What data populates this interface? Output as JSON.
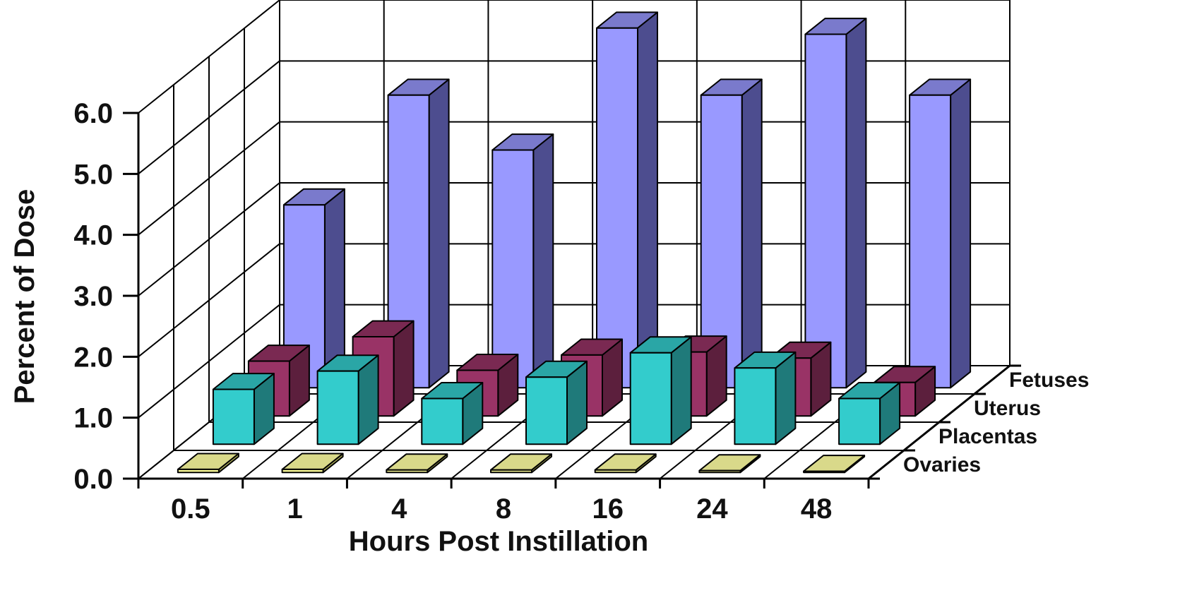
{
  "chart_data": {
    "type": "bar",
    "subtype": "3d-clustered-depth",
    "title": "",
    "xlabel": "Hours Post Instillation",
    "ylabel": "Percent of Dose",
    "categories": [
      "0.5",
      "1",
      "4",
      "8",
      "16",
      "24",
      "48"
    ],
    "ylim": [
      0,
      6.0
    ],
    "yticks": [
      "0.0",
      "1.0",
      "2.0",
      "3.0",
      "4.0",
      "5.0",
      "6.0"
    ],
    "grid": true,
    "legend": "depth-axis-labels-right",
    "series": [
      {
        "name": "Ovaries",
        "values": [
          0.05,
          0.05,
          0.04,
          0.04,
          0.04,
          0.03,
          0.02
        ]
      },
      {
        "name": "Placentas",
        "values": [
          0.9,
          1.2,
          0.75,
          1.1,
          1.5,
          1.25,
          0.75
        ]
      },
      {
        "name": "Uterus",
        "values": [
          0.9,
          1.3,
          0.75,
          1.0,
          1.05,
          0.95,
          0.55
        ]
      },
      {
        "name": "Fetuses",
        "values": [
          3.0,
          4.8,
          3.9,
          5.9,
          4.8,
          5.8,
          4.8
        ]
      }
    ],
    "colors": {
      "Ovaries": {
        "front": "#ffff99",
        "side": "#b3b35c",
        "top": "#d9d98a"
      },
      "Placentas": {
        "front": "#33cccc",
        "side": "#1f7a7a",
        "top": "#2aa6a6"
      },
      "Uterus": {
        "front": "#993366",
        "side": "#5c1f3d",
        "top": "#7a2952"
      },
      "Fetuses": {
        "front": "#9999ff",
        "side": "#4d4d8f",
        "top": "#7a7acc"
      }
    }
  }
}
